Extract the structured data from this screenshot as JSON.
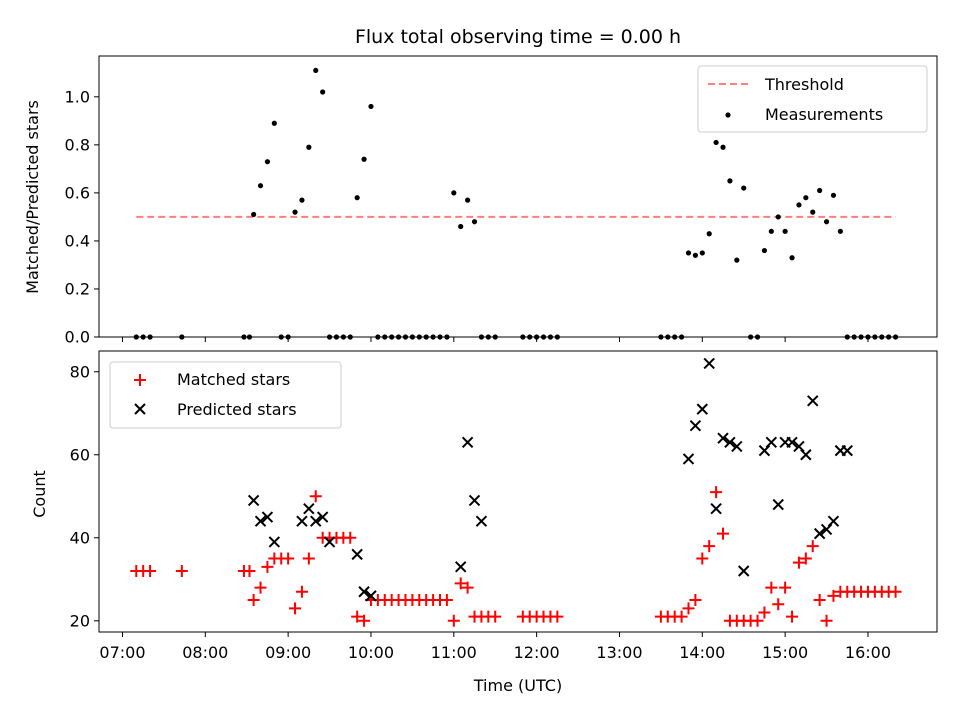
{
  "chart_data": [
    {
      "type": "scatter",
      "title": "Flux total observing time = 0.00 h",
      "ylabel": "Matched/Predicted stars",
      "xlabel": "",
      "xlim": [
        "06:43",
        "16:50"
      ],
      "ylim": [
        0,
        1.17
      ],
      "yticks": [
        "0.0",
        "0.2",
        "0.4",
        "0.6",
        "0.8",
        "1.0"
      ],
      "grid": false,
      "legend_position": "top-right",
      "threshold": {
        "name": "Threshold",
        "y": 0.5,
        "x_start": "07:10",
        "x_end": "16:20",
        "color": "#ff7f7f",
        "style": "dashed"
      },
      "series": [
        {
          "name": "Measurements",
          "color": "#000000",
          "marker": "dot",
          "x": [
            "07:10",
            "07:15",
            "07:20",
            "07:43",
            "08:28",
            "08:32",
            "08:35",
            "08:40",
            "08:45",
            "08:50",
            "08:55",
            "09:00",
            "09:05",
            "09:10",
            "09:15",
            "09:20",
            "09:25",
            "09:30",
            "09:35",
            "09:40",
            "09:45",
            "09:50",
            "09:55",
            "10:00",
            "10:05",
            "10:10",
            "10:15",
            "10:20",
            "10:25",
            "10:30",
            "10:35",
            "10:40",
            "10:45",
            "10:50",
            "10:55",
            "11:00",
            "11:05",
            "11:10",
            "11:15",
            "11:20",
            "11:25",
            "11:30",
            "11:50",
            "11:55",
            "12:00",
            "12:05",
            "12:10",
            "12:15",
            "13:30",
            "13:35",
            "13:40",
            "13:45",
            "13:50",
            "13:55",
            "14:00",
            "14:05",
            "14:10",
            "14:15",
            "14:20",
            "14:25",
            "14:30",
            "14:35",
            "14:40",
            "14:45",
            "14:50",
            "14:55",
            "15:00",
            "15:05",
            "15:10",
            "15:15",
            "15:20",
            "15:25",
            "15:30",
            "15:35",
            "15:40",
            "15:45",
            "15:50",
            "15:55",
            "16:00",
            "16:05",
            "16:10",
            "16:15",
            "16:20"
          ],
          "y": [
            0,
            0,
            0,
            0,
            0,
            0,
            0.51,
            0.63,
            0.73,
            0.89,
            0,
            0,
            0.52,
            0.57,
            0.79,
            1.11,
            1.02,
            0,
            0,
            0,
            0,
            0.58,
            0.74,
            0.96,
            0,
            0,
            0,
            0,
            0,
            0,
            0,
            0,
            0,
            0,
            0,
            0.6,
            0.46,
            0.57,
            0.48,
            0,
            0,
            0,
            0,
            0,
            0,
            0,
            0,
            0,
            0,
            0,
            0,
            0,
            0.35,
            0.34,
            0.35,
            0.43,
            0.81,
            0.79,
            0.65,
            0.32,
            0.62,
            0,
            0,
            0.36,
            0.44,
            0.5,
            0.44,
            0.33,
            0.55,
            0.58,
            0.52,
            0.61,
            0.48,
            0.59,
            0.44,
            0,
            0,
            0,
            0,
            0,
            0,
            0,
            0
          ]
        }
      ]
    },
    {
      "type": "scatter",
      "title": "",
      "ylabel": "Count",
      "xlabel": "Time (UTC)",
      "xlim": [
        "06:43",
        "16:50"
      ],
      "ylim": [
        17.3,
        85
      ],
      "yticks": [
        "20",
        "40",
        "60",
        "80"
      ],
      "xticks": [
        "07:00",
        "08:00",
        "09:00",
        "10:00",
        "11:00",
        "12:00",
        "13:00",
        "14:00",
        "15:00",
        "16:00"
      ],
      "grid": false,
      "legend_position": "top-left",
      "series": [
        {
          "name": "Matched stars",
          "color": "#ff0000",
          "marker": "plus",
          "x": [
            "07:10",
            "07:15",
            "07:20",
            "07:43",
            "08:28",
            "08:32",
            "08:35",
            "08:40",
            "08:45",
            "08:50",
            "08:55",
            "09:00",
            "09:05",
            "09:10",
            "09:15",
            "09:20",
            "09:25",
            "09:30",
            "09:35",
            "09:40",
            "09:45",
            "09:50",
            "09:55",
            "10:00",
            "10:05",
            "10:10",
            "10:15",
            "10:20",
            "10:25",
            "10:30",
            "10:35",
            "10:40",
            "10:45",
            "10:50",
            "10:55",
            "11:00",
            "11:05",
            "11:10",
            "11:15",
            "11:20",
            "11:25",
            "11:30",
            "11:50",
            "11:55",
            "12:00",
            "12:05",
            "12:10",
            "12:15",
            "13:30",
            "13:35",
            "13:40",
            "13:45",
            "13:50",
            "13:55",
            "14:00",
            "14:05",
            "14:10",
            "14:15",
            "14:20",
            "14:25",
            "14:30",
            "14:35",
            "14:40",
            "14:45",
            "14:50",
            "14:55",
            "15:00",
            "15:05",
            "15:10",
            "15:15",
            "15:20",
            "15:25",
            "15:30",
            "15:35",
            "15:40",
            "15:45",
            "15:50",
            "15:55",
            "16:00",
            "16:05",
            "16:10",
            "16:15",
            "16:20"
          ],
          "y": [
            32,
            32,
            32,
            32,
            32,
            32,
            25,
            28,
            33,
            35,
            35,
            35,
            23,
            27,
            35,
            50,
            40,
            40,
            40,
            40,
            40,
            21,
            20,
            25,
            25,
            25,
            25,
            25,
            25,
            25,
            25,
            25,
            25,
            25,
            25,
            20,
            29,
            28,
            21,
            21,
            21,
            21,
            21,
            21,
            21,
            21,
            21,
            21,
            21,
            21,
            21,
            21,
            23,
            25,
            35,
            38,
            51,
            41,
            20,
            20,
            20,
            20,
            20,
            22,
            28,
            24,
            28,
            21,
            34,
            35,
            38,
            25,
            20,
            26,
            27,
            27,
            27,
            27,
            27,
            27,
            27,
            27,
            27
          ]
        },
        {
          "name": "Predicted stars",
          "color": "#000000",
          "marker": "x",
          "x": [
            "08:35",
            "08:40",
            "08:45",
            "08:50",
            "09:10",
            "09:15",
            "09:20",
            "09:25",
            "09:30",
            "09:50",
            "09:55",
            "10:00",
            "11:05",
            "11:10",
            "11:15",
            "11:20",
            "13:50",
            "13:55",
            "14:00",
            "14:05",
            "14:10",
            "14:15",
            "14:20",
            "14:25",
            "14:30",
            "14:45",
            "14:50",
            "14:55",
            "15:00",
            "15:05",
            "15:10",
            "15:15",
            "15:20",
            "15:25",
            "15:30",
            "15:35",
            "15:40",
            "15:45"
          ],
          "y": [
            49,
            44,
            45,
            39,
            44,
            47,
            44,
            45,
            39,
            36,
            27,
            26,
            33,
            63,
            49,
            44,
            59,
            67,
            71,
            82,
            47,
            64,
            63,
            62,
            32,
            61,
            63,
            48,
            63,
            63,
            62,
            60,
            73,
            41,
            42,
            44,
            61,
            61
          ]
        }
      ]
    }
  ]
}
